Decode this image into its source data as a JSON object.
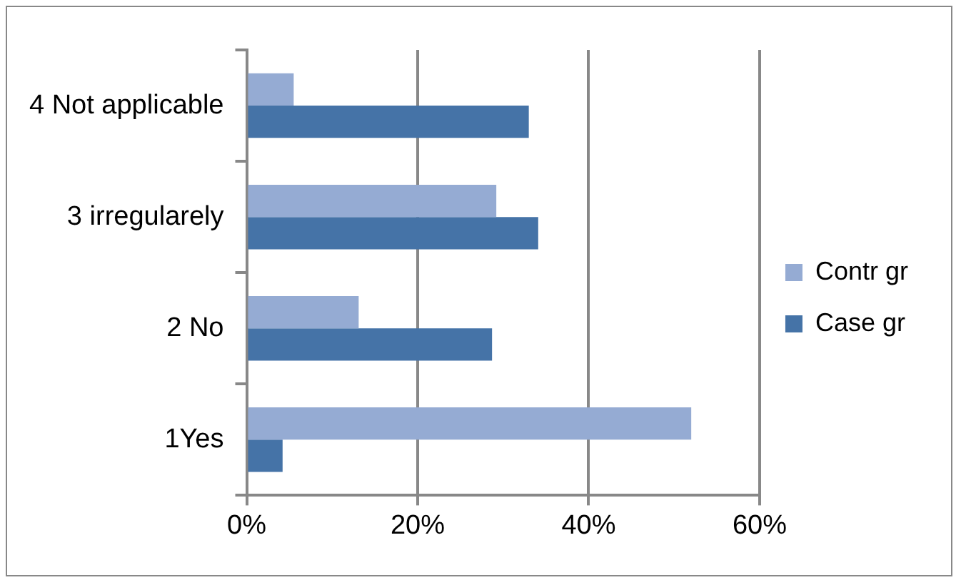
{
  "chart_data": {
    "type": "bar",
    "orientation": "horizontal",
    "categories": [
      "4 Not applicable",
      "3 irregularely",
      "2 No",
      "1Yes"
    ],
    "series": [
      {
        "name": "Contr gr",
        "color": "#95abd3",
        "values": [
          5.5,
          29.2,
          13.1,
          52
        ]
      },
      {
        "name": "Case gr",
        "color": "#4573a7",
        "values": [
          33,
          34.1,
          28.7,
          4.2
        ]
      }
    ],
    "xlim": [
      0,
      60
    ],
    "xticks": [
      {
        "value": 0,
        "label": "0%"
      },
      {
        "value": 20,
        "label": "20%"
      },
      {
        "value": 40,
        "label": "40%"
      },
      {
        "value": 60,
        "label": "60%"
      }
    ],
    "grid": "x",
    "legend": "right"
  }
}
